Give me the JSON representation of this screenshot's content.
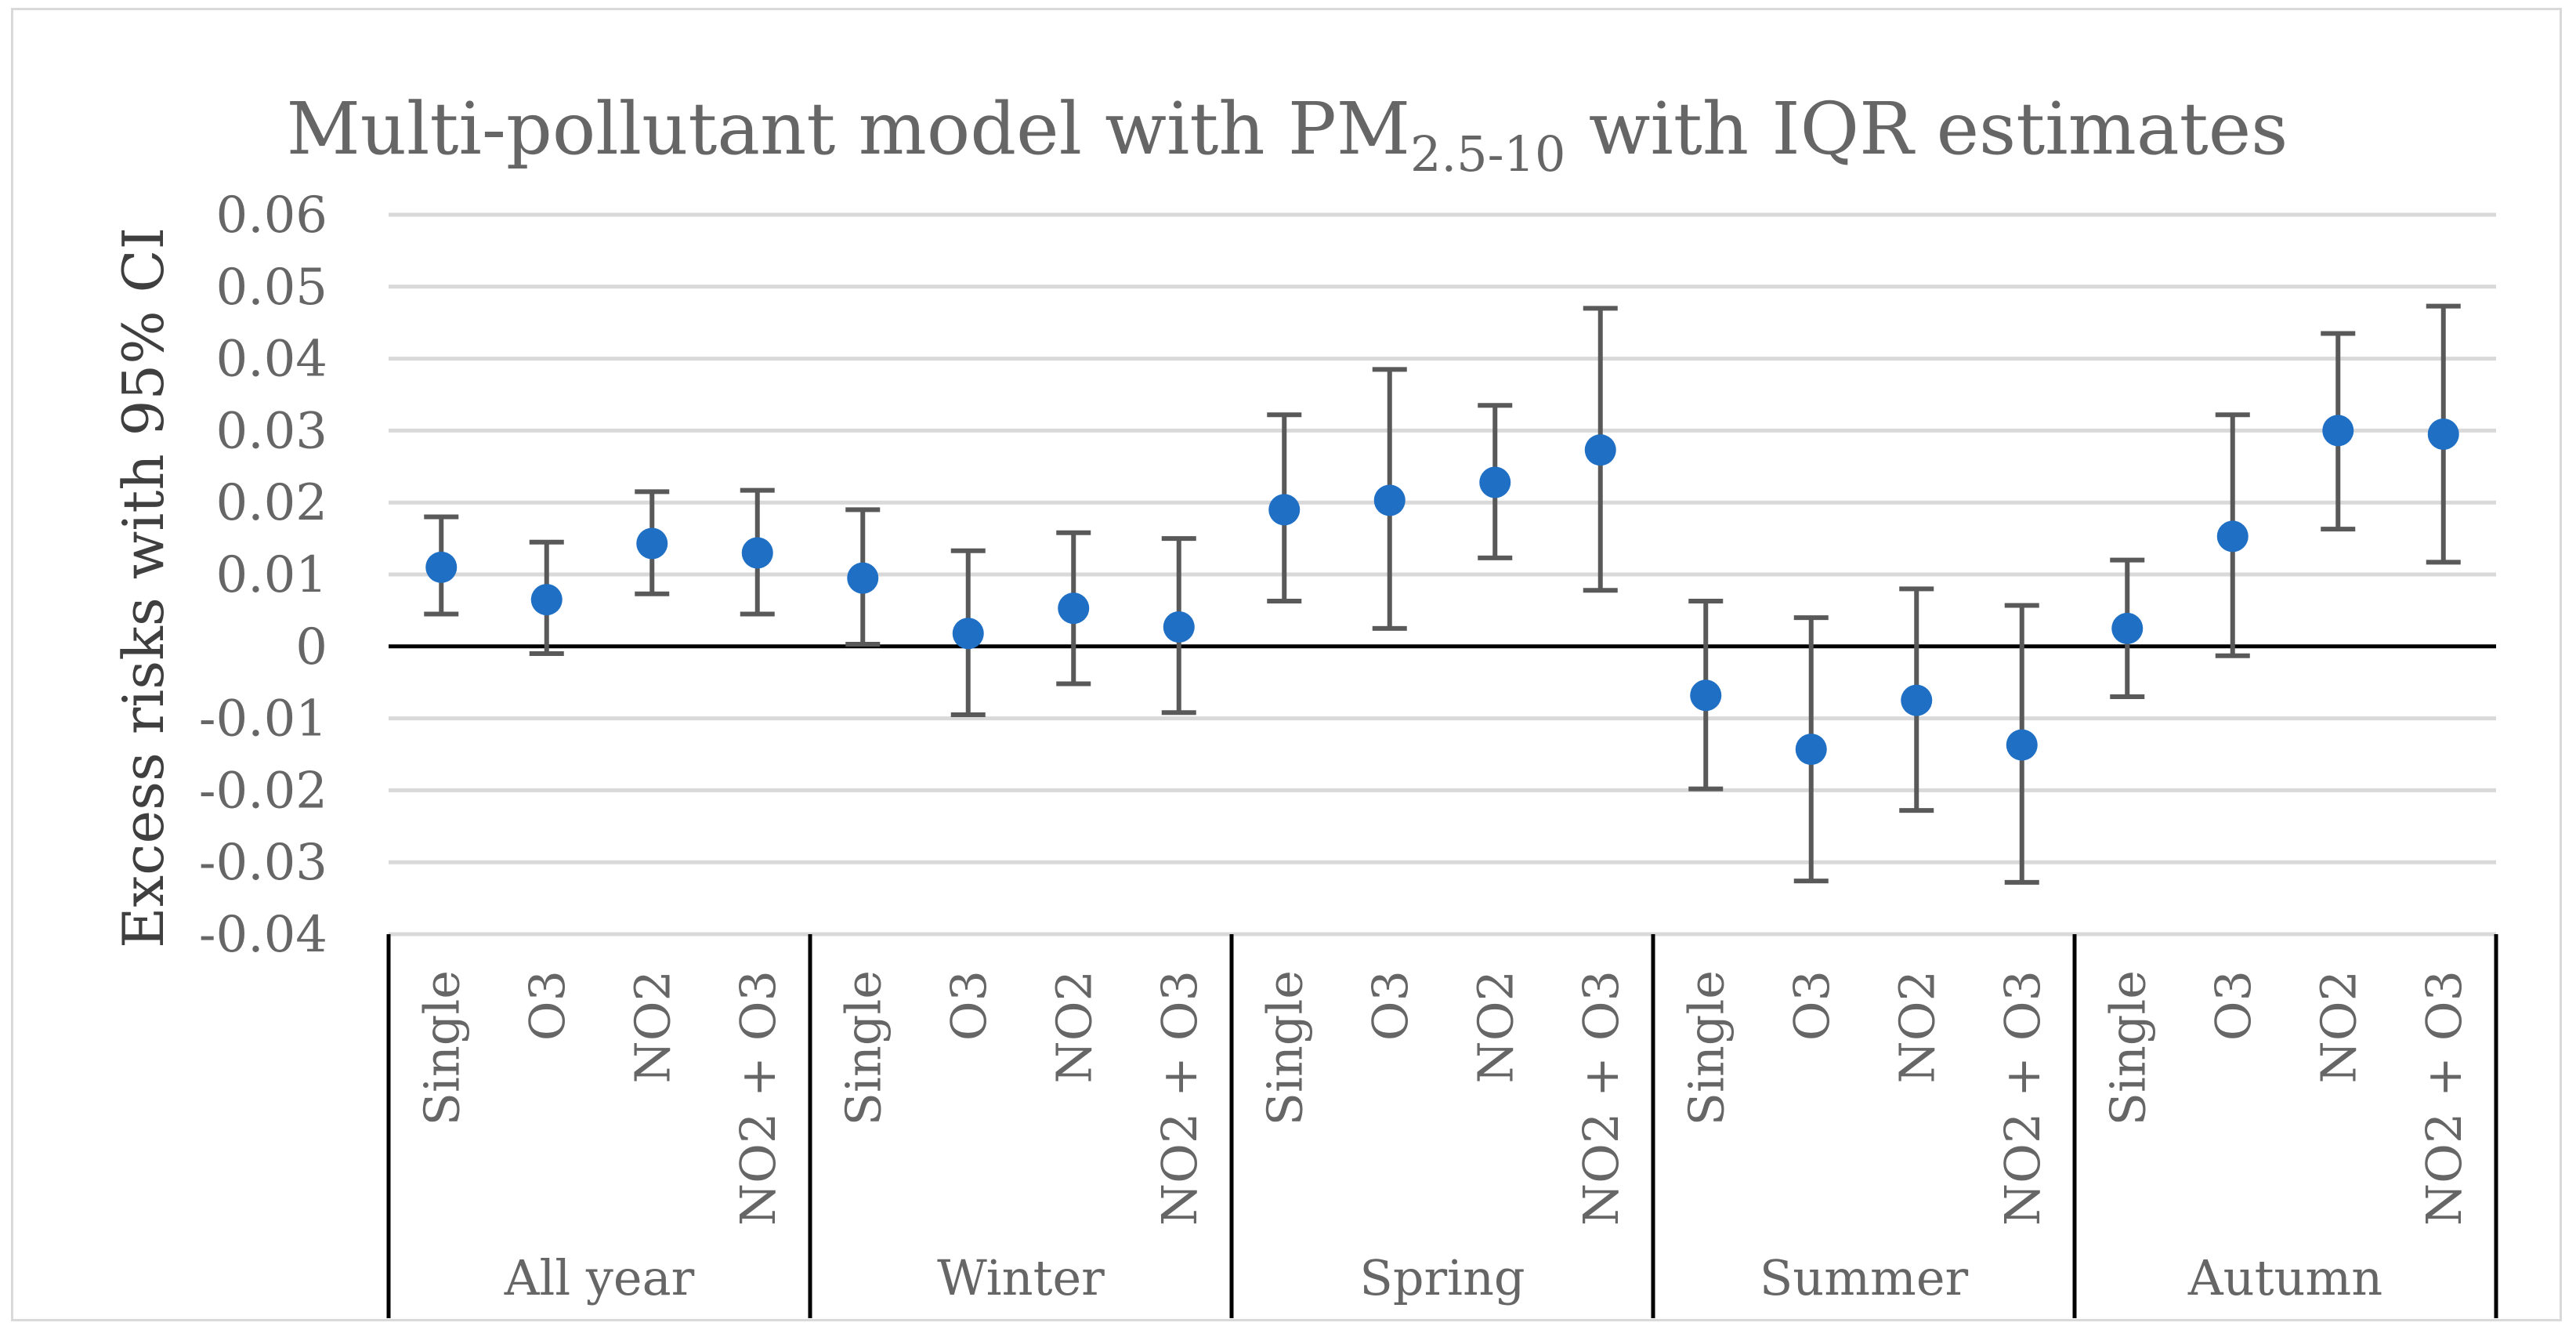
{
  "chart_data": {
    "type": "scatter",
    "title_main": "Multi-pollutant model with PM",
    "title_sub": "2.5-10",
    "title_tail": " with IQR estimates",
    "ylabel": "Excess risks with 95% CI",
    "xlabel": "",
    "ylim": [
      -0.04,
      0.06
    ],
    "yticks": [
      0.06,
      0.05,
      0.04,
      0.03,
      0.02,
      0.01,
      0,
      -0.01,
      -0.02,
      -0.03,
      -0.04
    ],
    "ytick_labels": [
      "0.06",
      "0.05",
      "0.04",
      "0.03",
      "0.02",
      "0.01",
      "0",
      "-0.01",
      "-0.02",
      "-0.03",
      "-0.04"
    ],
    "grid": true,
    "marker_color": "#1f6fc5",
    "errorbar_color": "#595959",
    "groups": [
      {
        "name": "All year",
        "points": [
          {
            "label": "Single",
            "value": 0.011,
            "lower": 0.0045,
            "upper": 0.018
          },
          {
            "label": "O3",
            "value": 0.0065,
            "lower": -0.001,
            "upper": 0.0145
          },
          {
            "label": "NO2",
            "value": 0.0143,
            "lower": 0.0073,
            "upper": 0.0215
          },
          {
            "label": "NO2 + O3",
            "value": 0.013,
            "lower": 0.0045,
            "upper": 0.0217
          }
        ]
      },
      {
        "name": "Winter",
        "points": [
          {
            "label": "Single",
            "value": 0.0095,
            "lower": 0.0003,
            "upper": 0.019
          },
          {
            "label": "O3",
            "value": 0.0018,
            "lower": -0.0095,
            "upper": 0.0133
          },
          {
            "label": "NO2",
            "value": 0.0053,
            "lower": -0.0052,
            "upper": 0.0158
          },
          {
            "label": "NO2 + O3",
            "value": 0.0027,
            "lower": -0.0092,
            "upper": 0.015
          }
        ]
      },
      {
        "name": "Spring",
        "points": [
          {
            "label": "Single",
            "value": 0.019,
            "lower": 0.0063,
            "upper": 0.0322
          },
          {
            "label": "O3",
            "value": 0.0203,
            "lower": 0.0025,
            "upper": 0.0385
          },
          {
            "label": "NO2",
            "value": 0.0228,
            "lower": 0.0123,
            "upper": 0.0335
          },
          {
            "label": "NO2 + O3",
            "value": 0.0273,
            "lower": 0.0078,
            "upper": 0.047
          }
        ]
      },
      {
        "name": "Summer",
        "points": [
          {
            "label": "Single",
            "value": -0.0068,
            "lower": -0.0198,
            "upper": 0.0063
          },
          {
            "label": "O3",
            "value": -0.0143,
            "lower": -0.0326,
            "upper": 0.004
          },
          {
            "label": "NO2",
            "value": -0.0075,
            "lower": -0.0228,
            "upper": 0.008
          },
          {
            "label": "NO2 + O3",
            "value": -0.0137,
            "lower": -0.0328,
            "upper": 0.0057
          }
        ]
      },
      {
        "name": "Autumn",
        "points": [
          {
            "label": "Single",
            "value": 0.0025,
            "lower": -0.007,
            "upper": 0.012
          },
          {
            "label": "O3",
            "value": 0.0153,
            "lower": -0.0013,
            "upper": 0.0322
          },
          {
            "label": "NO2",
            "value": 0.03,
            "lower": 0.0163,
            "upper": 0.0435
          },
          {
            "label": "NO2 + O3",
            "value": 0.0295,
            "lower": 0.0117,
            "upper": 0.0473
          }
        ]
      }
    ]
  }
}
